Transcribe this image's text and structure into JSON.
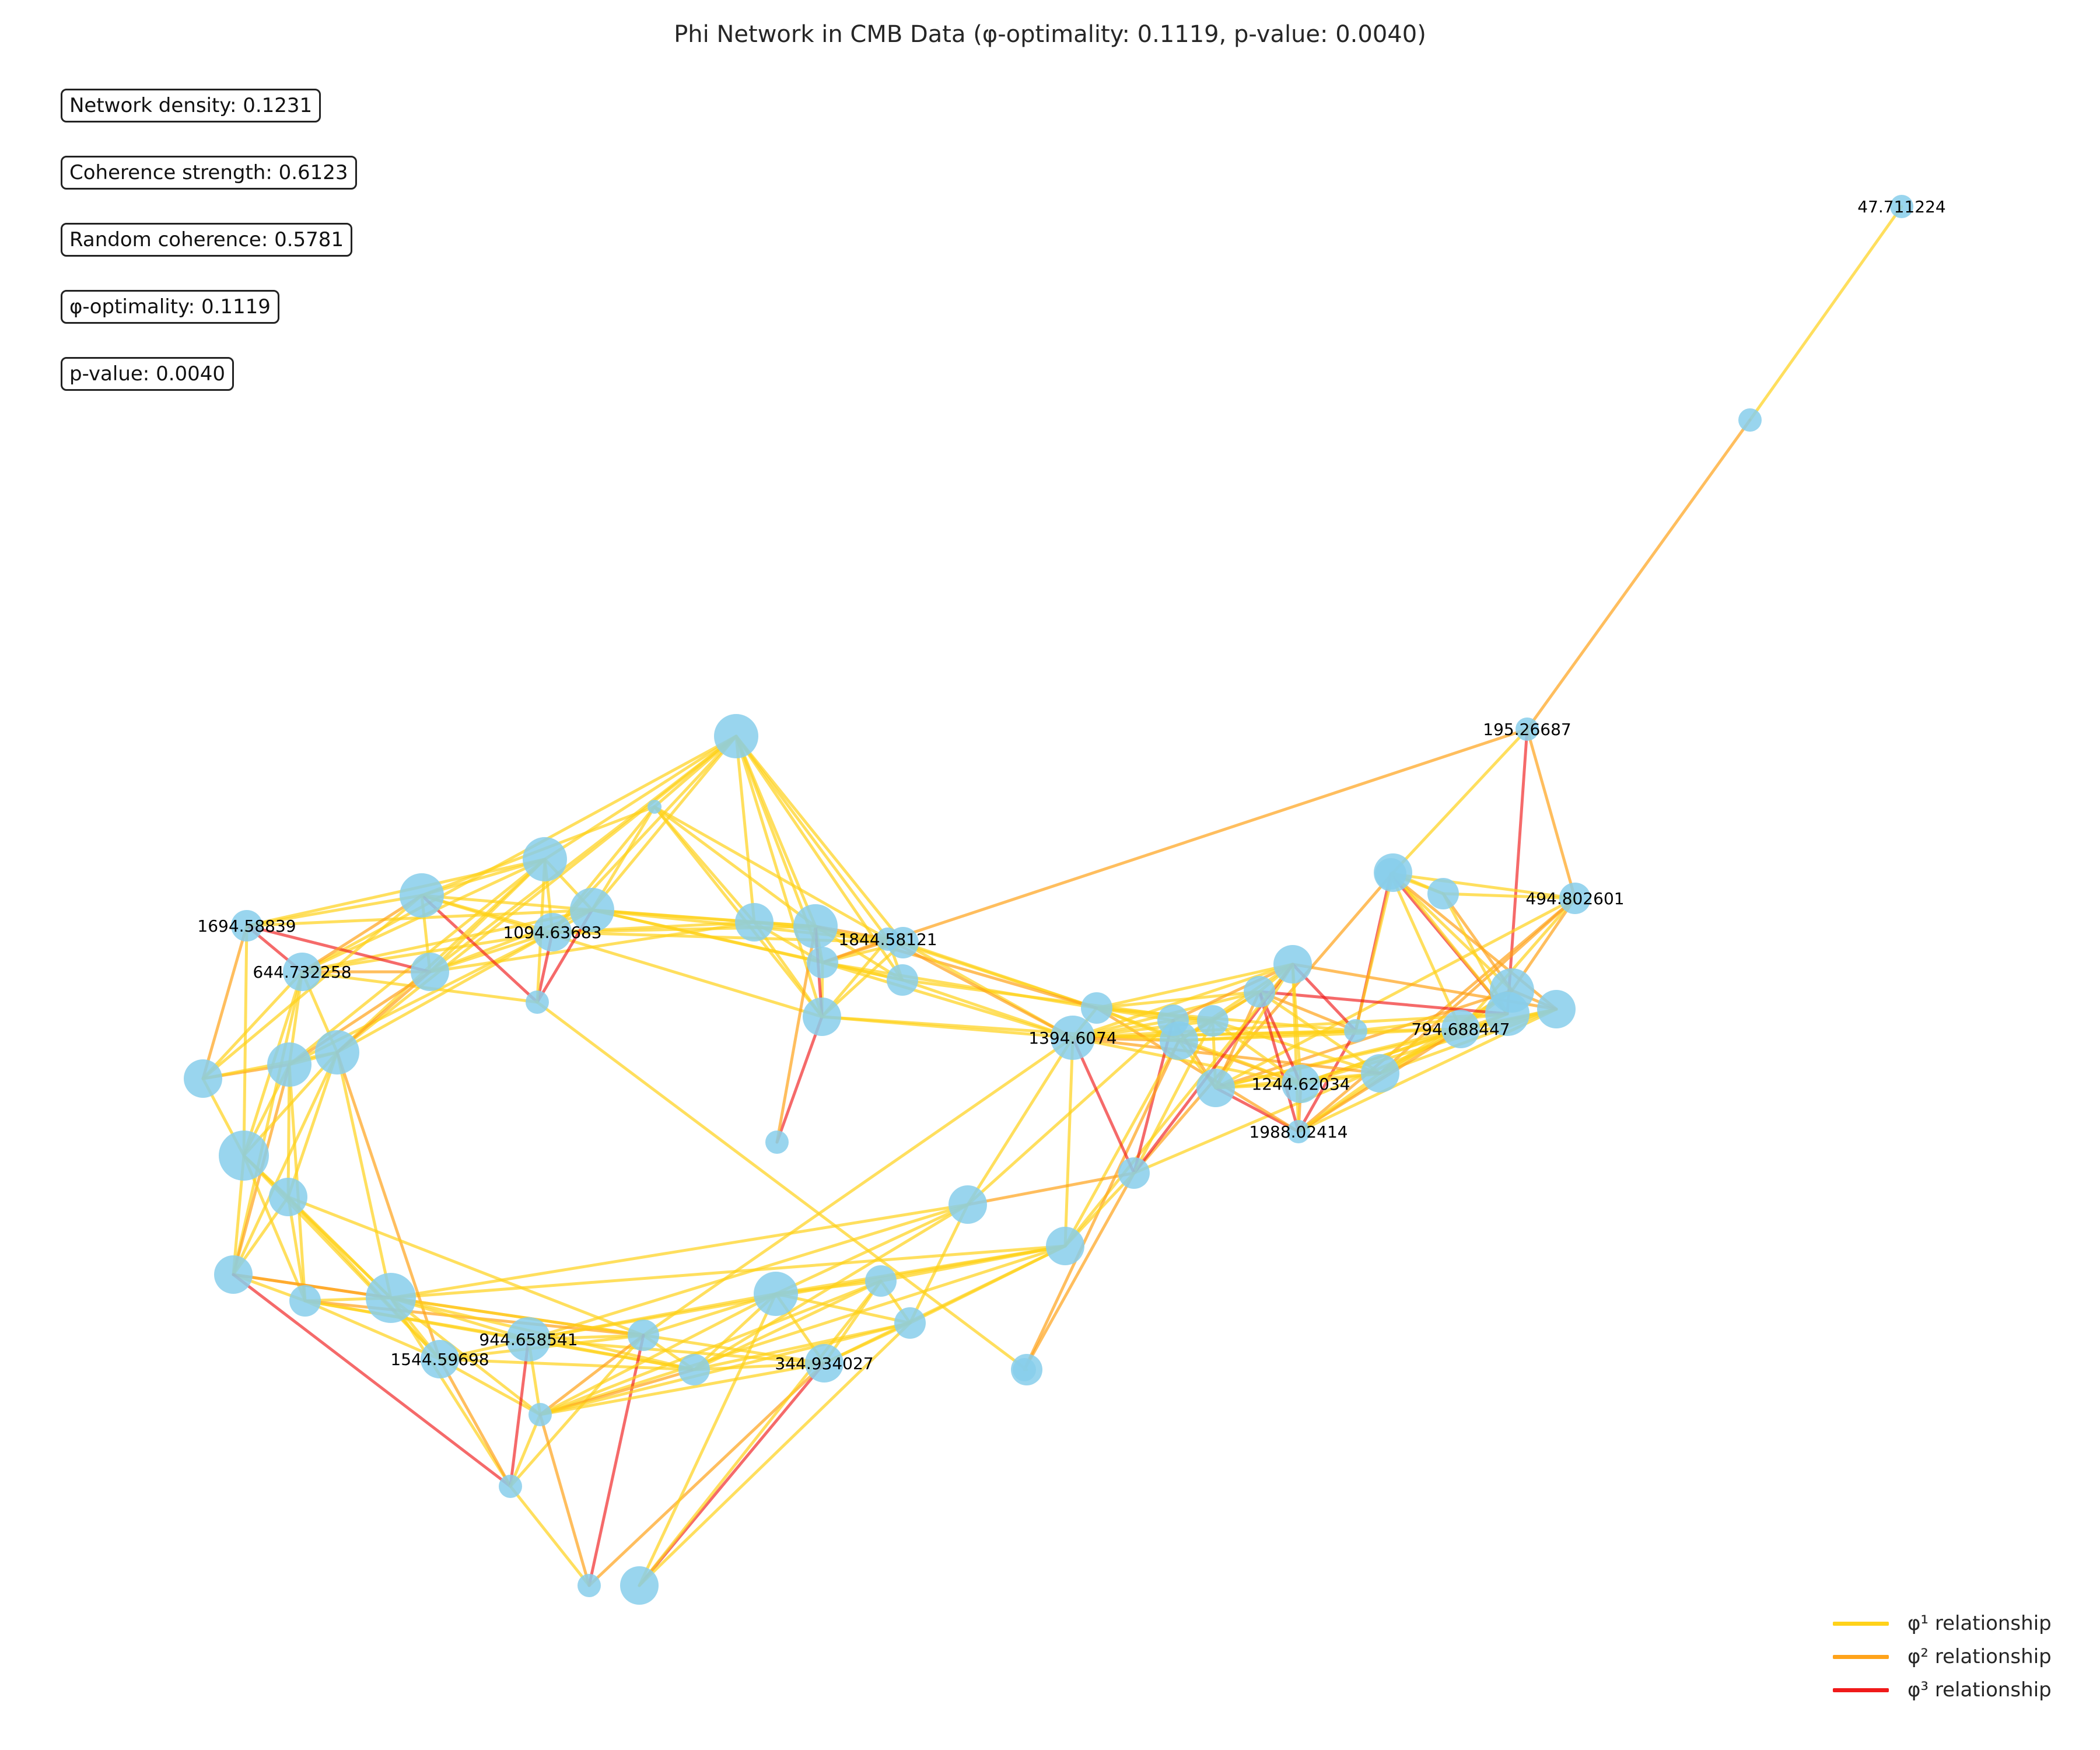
{
  "title": "Phi Network in CMB Data (φ-optimality: 0.1119, p-value: 0.0040)",
  "stats": [
    {
      "label": "Network density",
      "value": "0.1231",
      "text": "Network density: 0.1231"
    },
    {
      "label": "Coherence strength",
      "value": "0.6123",
      "text": "Coherence strength: 0.6123"
    },
    {
      "label": "Random coherence",
      "value": "0.5781",
      "text": "Random coherence: 0.5781"
    },
    {
      "label": "φ-optimality",
      "value": "0.1119",
      "text": "φ-optimality: 0.1119"
    },
    {
      "label": "p-value",
      "value": "0.0040",
      "text": "p-value: 0.0040"
    }
  ],
  "legend": [
    {
      "key": "phi1",
      "label": "φ¹ relationship",
      "color": "#ffd21a"
    },
    {
      "key": "phi2",
      "label": "φ² relationship",
      "color": "#ffa31a"
    },
    {
      "key": "phi3",
      "label": "φ³ relationship",
      "color": "#f01a1a"
    }
  ],
  "colors": {
    "node": "#87ceeb",
    "phi1": "#ffd21a",
    "phi2": "#ffa31a",
    "phi3": "#f01a1a"
  },
  "node_labels": [
    "47.711224",
    "195.26687",
    "494.802601",
    "1694.58839",
    "644.732258",
    "1094.63683",
    "1844.58121",
    "1394.6074",
    "1988.02414",
    "794.688447",
    "1244.62034",
    "944.658541",
    "1544.59698",
    "344.934027"
  ],
  "nodes": [
    {
      "id": 0,
      "size": 1,
      "label": "47.711224"
    },
    {
      "id": 1,
      "size": 1
    },
    {
      "id": 2,
      "size": 1,
      "label": "195.26687"
    },
    {
      "id": 3,
      "size": 2,
      "label": "494.802601"
    },
    {
      "id": 4,
      "size": 2
    },
    {
      "id": 5,
      "size": 2
    },
    {
      "id": 6,
      "size": 3
    },
    {
      "id": 7,
      "size": 4
    },
    {
      "id": 8,
      "size": 4
    },
    {
      "id": 9,
      "size": 3
    },
    {
      "id": 10,
      "size": 1
    },
    {
      "id": 11,
      "size": 3,
      "label": "794.688447"
    },
    {
      "id": 12,
      "size": 3
    },
    {
      "id": 13,
      "size": 1,
      "label": "1988.02414"
    },
    {
      "id": 14,
      "size": 3,
      "label": "1244.62034"
    },
    {
      "id": 15,
      "size": 3
    },
    {
      "id": 16,
      "size": 2
    },
    {
      "id": 17,
      "size": 3
    },
    {
      "id": 18,
      "size": 2
    },
    {
      "id": 19,
      "size": 3
    },
    {
      "id": 20,
      "size": 2
    },
    {
      "id": 21,
      "size": 2
    },
    {
      "id": 22,
      "size": 4,
      "label": "1394.6074"
    },
    {
      "id": 23,
      "size": 2
    },
    {
      "id": 24,
      "size": 3
    },
    {
      "id": 25,
      "size": 3
    },
    {
      "id": 26,
      "size": 1
    },
    {
      "id": 27,
      "size": 2
    },
    {
      "id": 28,
      "size": 2
    },
    {
      "id": 29,
      "size": 2
    },
    {
      "id": 30,
      "size": 1,
      "label": "1844.58121"
    },
    {
      "id": 31,
      "size": 3
    },
    {
      "id": 32,
      "size": 1
    },
    {
      "id": 33,
      "size": 4
    },
    {
      "id": 34,
      "size": 3
    },
    {
      "id": 35,
      "size": 4
    },
    {
      "id": 36,
      "size": 0
    },
    {
      "id": 37,
      "size": 4
    },
    {
      "id": 38,
      "size": 3,
      "label": "1094.63683"
    },
    {
      "id": 39,
      "size": 1
    },
    {
      "id": 40,
      "size": 4
    },
    {
      "id": 41,
      "size": 3
    },
    {
      "id": 42,
      "size": 4
    },
    {
      "id": 43,
      "size": 2,
      "label": "1694.58839"
    },
    {
      "id": 44,
      "size": 3,
      "label": "644.732258"
    },
    {
      "id": 45,
      "size": 4
    },
    {
      "id": 46,
      "size": 4
    },
    {
      "id": 47,
      "size": 3
    },
    {
      "id": 48,
      "size": 5
    },
    {
      "id": 49,
      "size": 3
    },
    {
      "id": 50,
      "size": 3
    },
    {
      "id": 51,
      "size": 2
    },
    {
      "id": 52,
      "size": 5
    },
    {
      "id": 53,
      "size": 3,
      "label": "1544.59698"
    },
    {
      "id": 54,
      "size": 4,
      "label": "944.658541"
    },
    {
      "id": 55,
      "size": 2
    },
    {
      "id": 56,
      "size": 1
    },
    {
      "id": 57,
      "size": 1
    },
    {
      "id": 58,
      "size": 2
    },
    {
      "id": 59,
      "size": 3,
      "label": "344.934027"
    },
    {
      "id": 60,
      "size": 4
    },
    {
      "id": 61,
      "size": 2
    },
    {
      "id": 62,
      "size": 2
    },
    {
      "id": 63,
      "size": 3
    },
    {
      "id": 64,
      "size": 1
    },
    {
      "id": 65,
      "size": 2
    }
  ],
  "edges": [
    [
      0,
      1,
      1
    ],
    [
      1,
      2,
      2
    ],
    [
      2,
      8,
      3
    ],
    [
      2,
      3,
      2
    ],
    [
      2,
      6,
      1
    ],
    [
      2,
      29,
      2
    ],
    [
      3,
      4,
      1
    ],
    [
      3,
      7,
      2
    ],
    [
      3,
      11,
      1
    ],
    [
      3,
      12,
      2
    ],
    [
      3,
      5,
      1
    ],
    [
      3,
      13,
      2
    ],
    [
      3,
      15,
      1
    ],
    [
      4,
      5,
      1
    ],
    [
      4,
      6,
      1
    ],
    [
      4,
      7,
      1
    ],
    [
      4,
      10,
      3
    ],
    [
      4,
      8,
      3
    ],
    [
      4,
      11,
      1
    ],
    [
      4,
      9,
      2
    ],
    [
      5,
      7,
      2
    ],
    [
      5,
      8,
      1
    ],
    [
      5,
      6,
      1
    ],
    [
      6,
      8,
      1
    ],
    [
      6,
      23,
      2
    ],
    [
      6,
      10,
      1
    ],
    [
      7,
      11,
      1
    ],
    [
      7,
      12,
      1
    ],
    [
      7,
      13,
      1
    ],
    [
      7,
      15,
      2
    ],
    [
      7,
      9,
      2
    ],
    [
      8,
      10,
      1
    ],
    [
      8,
      14,
      1
    ],
    [
      8,
      23,
      1
    ],
    [
      8,
      16,
      3
    ],
    [
      8,
      22,
      1
    ],
    [
      9,
      11,
      1
    ],
    [
      9,
      12,
      1
    ],
    [
      9,
      13,
      1
    ],
    [
      9,
      14,
      1
    ],
    [
      9,
      15,
      1
    ],
    [
      9,
      17,
      2
    ],
    [
      10,
      13,
      3
    ],
    [
      10,
      17,
      3
    ],
    [
      10,
      19,
      1
    ],
    [
      10,
      21,
      1
    ],
    [
      10,
      22,
      1
    ],
    [
      10,
      16,
      2
    ],
    [
      11,
      12,
      1
    ],
    [
      11,
      13,
      2
    ],
    [
      11,
      14,
      1
    ],
    [
      11,
      15,
      1
    ],
    [
      11,
      22,
      1
    ],
    [
      11,
      19,
      1
    ],
    [
      12,
      13,
      1
    ],
    [
      12,
      14,
      1
    ],
    [
      12,
      15,
      1
    ],
    [
      12,
      16,
      1
    ],
    [
      12,
      20,
      1
    ],
    [
      12,
      22,
      2
    ],
    [
      13,
      14,
      2
    ],
    [
      13,
      15,
      3
    ],
    [
      13,
      17,
      1
    ],
    [
      13,
      16,
      3
    ],
    [
      13,
      21,
      2
    ],
    [
      14,
      15,
      1
    ],
    [
      14,
      16,
      3
    ],
    [
      14,
      17,
      1
    ],
    [
      14,
      19,
      2
    ],
    [
      14,
      20,
      1
    ],
    [
      14,
      21,
      1
    ],
    [
      14,
      22,
      1
    ],
    [
      15,
      16,
      2
    ],
    [
      15,
      17,
      1
    ],
    [
      15,
      19,
      1
    ],
    [
      15,
      18,
      2
    ],
    [
      15,
      20,
      1
    ],
    [
      16,
      17,
      1
    ],
    [
      16,
      19,
      2
    ],
    [
      16,
      20,
      1
    ],
    [
      16,
      21,
      1
    ],
    [
      16,
      22,
      1
    ],
    [
      17,
      18,
      2
    ],
    [
      17,
      19,
      1
    ],
    [
      17,
      21,
      1
    ],
    [
      17,
      22,
      1
    ],
    [
      17,
      23,
      3
    ],
    [
      17,
      24,
      1
    ],
    [
      18,
      19,
      1
    ],
    [
      18,
      20,
      1
    ],
    [
      18,
      21,
      1
    ],
    [
      18,
      22,
      1
    ],
    [
      18,
      23,
      3
    ],
    [
      18,
      25,
      1
    ],
    [
      19,
      20,
      1
    ],
    [
      19,
      21,
      1
    ],
    [
      19,
      22,
      2
    ],
    [
      19,
      24,
      1
    ],
    [
      19,
      31,
      1
    ],
    [
      19,
      26,
      2
    ],
    [
      20,
      21,
      1
    ],
    [
      20,
      22,
      1
    ],
    [
      20,
      23,
      1
    ],
    [
      20,
      28,
      1
    ],
    [
      21,
      22,
      1
    ],
    [
      21,
      27,
      1
    ],
    [
      21,
      29,
      1
    ],
    [
      21,
      30,
      1
    ],
    [
      21,
      33,
      2
    ],
    [
      22,
      23,
      3
    ],
    [
      22,
      24,
      1
    ],
    [
      22,
      25,
      1
    ],
    [
      22,
      27,
      1
    ],
    [
      22,
      28,
      1
    ],
    [
      22,
      29,
      1
    ],
    [
      22,
      30,
      2
    ],
    [
      22,
      31,
      1
    ],
    [
      22,
      55,
      1
    ],
    [
      23,
      25,
      2
    ],
    [
      23,
      26,
      2
    ],
    [
      23,
      24,
      1
    ],
    [
      24,
      54,
      1
    ],
    [
      24,
      52,
      1
    ],
    [
      24,
      59,
      1
    ],
    [
      24,
      60,
      1
    ],
    [
      24,
      61,
      1
    ],
    [
      24,
      62,
      1
    ],
    [
      24,
      57,
      1
    ],
    [
      25,
      52,
      1
    ],
    [
      25,
      58,
      1
    ],
    [
      25,
      60,
      1
    ],
    [
      25,
      62,
      1
    ],
    [
      25,
      54,
      1
    ],
    [
      26,
      65,
      1
    ],
    [
      27,
      29,
      1
    ],
    [
      27,
      30,
      1
    ],
    [
      27,
      31,
      1
    ],
    [
      27,
      37,
      1
    ],
    [
      27,
      38,
      1
    ],
    [
      27,
      35,
      1
    ],
    [
      28,
      29,
      1
    ],
    [
      28,
      30,
      1
    ],
    [
      28,
      33,
      1
    ],
    [
      28,
      35,
      1
    ],
    [
      28,
      37,
      1
    ],
    [
      29,
      30,
      2
    ],
    [
      29,
      31,
      1
    ],
    [
      29,
      33,
      1
    ],
    [
      29,
      34,
      1
    ],
    [
      29,
      35,
      1
    ],
    [
      29,
      37,
      1
    ],
    [
      30,
      31,
      1
    ],
    [
      30,
      33,
      2
    ],
    [
      30,
      34,
      1
    ],
    [
      30,
      35,
      1
    ],
    [
      30,
      36,
      1
    ],
    [
      31,
      32,
      3
    ],
    [
      31,
      33,
      3
    ],
    [
      31,
      34,
      1
    ],
    [
      31,
      35,
      1
    ],
    [
      31,
      36,
      1
    ],
    [
      31,
      42,
      1
    ],
    [
      32,
      33,
      2
    ],
    [
      33,
      34,
      1
    ],
    [
      33,
      35,
      1
    ],
    [
      33,
      36,
      1
    ],
    [
      33,
      37,
      1
    ],
    [
      33,
      38,
      1
    ],
    [
      34,
      35,
      1
    ],
    [
      34,
      36,
      1
    ],
    [
      34,
      37,
      1
    ],
    [
      34,
      38,
      1
    ],
    [
      34,
      41,
      1
    ],
    [
      35,
      36,
      1
    ],
    [
      35,
      37,
      1
    ],
    [
      35,
      38,
      1
    ],
    [
      35,
      41,
      1
    ],
    [
      35,
      40,
      1
    ],
    [
      35,
      44,
      1
    ],
    [
      35,
      46,
      1
    ],
    [
      36,
      37,
      1
    ],
    [
      36,
      38,
      1
    ],
    [
      36,
      42,
      1
    ],
    [
      37,
      38,
      1
    ],
    [
      37,
      39,
      3
    ],
    [
      37,
      40,
      1
    ],
    [
      37,
      41,
      1
    ],
    [
      37,
      42,
      1
    ],
    [
      37,
      43,
      1
    ],
    [
      37,
      44,
      1
    ],
    [
      38,
      39,
      3
    ],
    [
      38,
      40,
      1
    ],
    [
      38,
      41,
      1
    ],
    [
      38,
      42,
      1
    ],
    [
      38,
      44,
      1
    ],
    [
      38,
      45,
      1
    ],
    [
      38,
      46,
      1
    ],
    [
      39,
      42,
      3
    ],
    [
      39,
      65,
      1
    ],
    [
      39,
      40,
      1
    ],
    [
      39,
      44,
      1
    ],
    [
      40,
      41,
      1
    ],
    [
      40,
      42,
      1
    ],
    [
      40,
      43,
      1
    ],
    [
      40,
      44,
      1
    ],
    [
      40,
      45,
      1
    ],
    [
      40,
      46,
      1
    ],
    [
      41,
      42,
      1
    ],
    [
      41,
      43,
      3
    ],
    [
      41,
      44,
      2
    ],
    [
      41,
      45,
      2
    ],
    [
      41,
      46,
      2
    ],
    [
      42,
      43,
      1
    ],
    [
      42,
      44,
      2
    ],
    [
      42,
      47,
      1
    ],
    [
      43,
      44,
      3
    ],
    [
      43,
      47,
      2
    ],
    [
      43,
      48,
      1
    ],
    [
      44,
      45,
      1
    ],
    [
      44,
      46,
      1
    ],
    [
      44,
      47,
      1
    ],
    [
      44,
      48,
      1
    ],
    [
      44,
      50,
      1
    ],
    [
      45,
      46,
      1
    ],
    [
      45,
      47,
      2
    ],
    [
      45,
      48,
      1
    ],
    [
      45,
      49,
      1
    ],
    [
      45,
      50,
      2
    ],
    [
      45,
      51,
      1
    ],
    [
      46,
      47,
      1
    ],
    [
      46,
      48,
      1
    ],
    [
      46,
      49,
      1
    ],
    [
      46,
      50,
      1
    ],
    [
      46,
      52,
      1
    ],
    [
      46,
      53,
      2
    ],
    [
      47,
      48,
      1
    ],
    [
      48,
      49,
      1
    ],
    [
      48,
      50,
      1
    ],
    [
      48,
      51,
      1
    ],
    [
      48,
      52,
      1
    ],
    [
      48,
      53,
      1
    ],
    [
      49,
      50,
      1
    ],
    [
      49,
      51,
      1
    ],
    [
      49,
      52,
      1
    ],
    [
      49,
      53,
      1
    ],
    [
      49,
      55,
      1
    ],
    [
      50,
      51,
      1
    ],
    [
      50,
      52,
      2
    ],
    [
      50,
      55,
      2
    ],
    [
      50,
      56,
      3
    ],
    [
      51,
      52,
      1
    ],
    [
      51,
      53,
      1
    ],
    [
      51,
      54,
      1
    ],
    [
      51,
      55,
      2
    ],
    [
      51,
      58,
      1
    ],
    [
      52,
      53,
      1
    ],
    [
      52,
      54,
      1
    ],
    [
      52,
      55,
      1
    ],
    [
      52,
      56,
      1
    ],
    [
      52,
      57,
      1
    ],
    [
      52,
      58,
      1
    ],
    [
      53,
      54,
      1
    ],
    [
      53,
      55,
      1
    ],
    [
      53,
      56,
      2
    ],
    [
      53,
      57,
      1
    ],
    [
      53,
      58,
      1
    ],
    [
      54,
      55,
      1
    ],
    [
      54,
      56,
      3
    ],
    [
      54,
      57,
      1
    ],
    [
      54,
      58,
      1
    ],
    [
      54,
      59,
      1
    ],
    [
      54,
      60,
      1
    ],
    [
      55,
      56,
      1
    ],
    [
      55,
      57,
      2
    ],
    [
      55,
      58,
      1
    ],
    [
      55,
      59,
      1
    ],
    [
      55,
      60,
      1
    ],
    [
      55,
      64,
      3
    ],
    [
      56,
      57,
      1
    ],
    [
      56,
      64,
      1
    ],
    [
      57,
      58,
      2
    ],
    [
      57,
      59,
      1
    ],
    [
      57,
      60,
      1
    ],
    [
      57,
      61,
      1
    ],
    [
      57,
      62,
      1
    ],
    [
      57,
      64,
      2
    ],
    [
      58,
      59,
      1
    ],
    [
      58,
      60,
      1
    ],
    [
      58,
      61,
      1
    ],
    [
      58,
      62,
      1
    ],
    [
      59,
      60,
      1
    ],
    [
      59,
      61,
      1
    ],
    [
      59,
      62,
      1
    ],
    [
      59,
      63,
      3
    ],
    [
      59,
      64,
      2
    ],
    [
      60,
      61,
      1
    ],
    [
      60,
      62,
      1
    ],
    [
      60,
      63,
      1
    ],
    [
      61,
      62,
      1
    ],
    [
      61,
      63,
      1
    ],
    [
      62,
      63,
      1
    ]
  ]
}
